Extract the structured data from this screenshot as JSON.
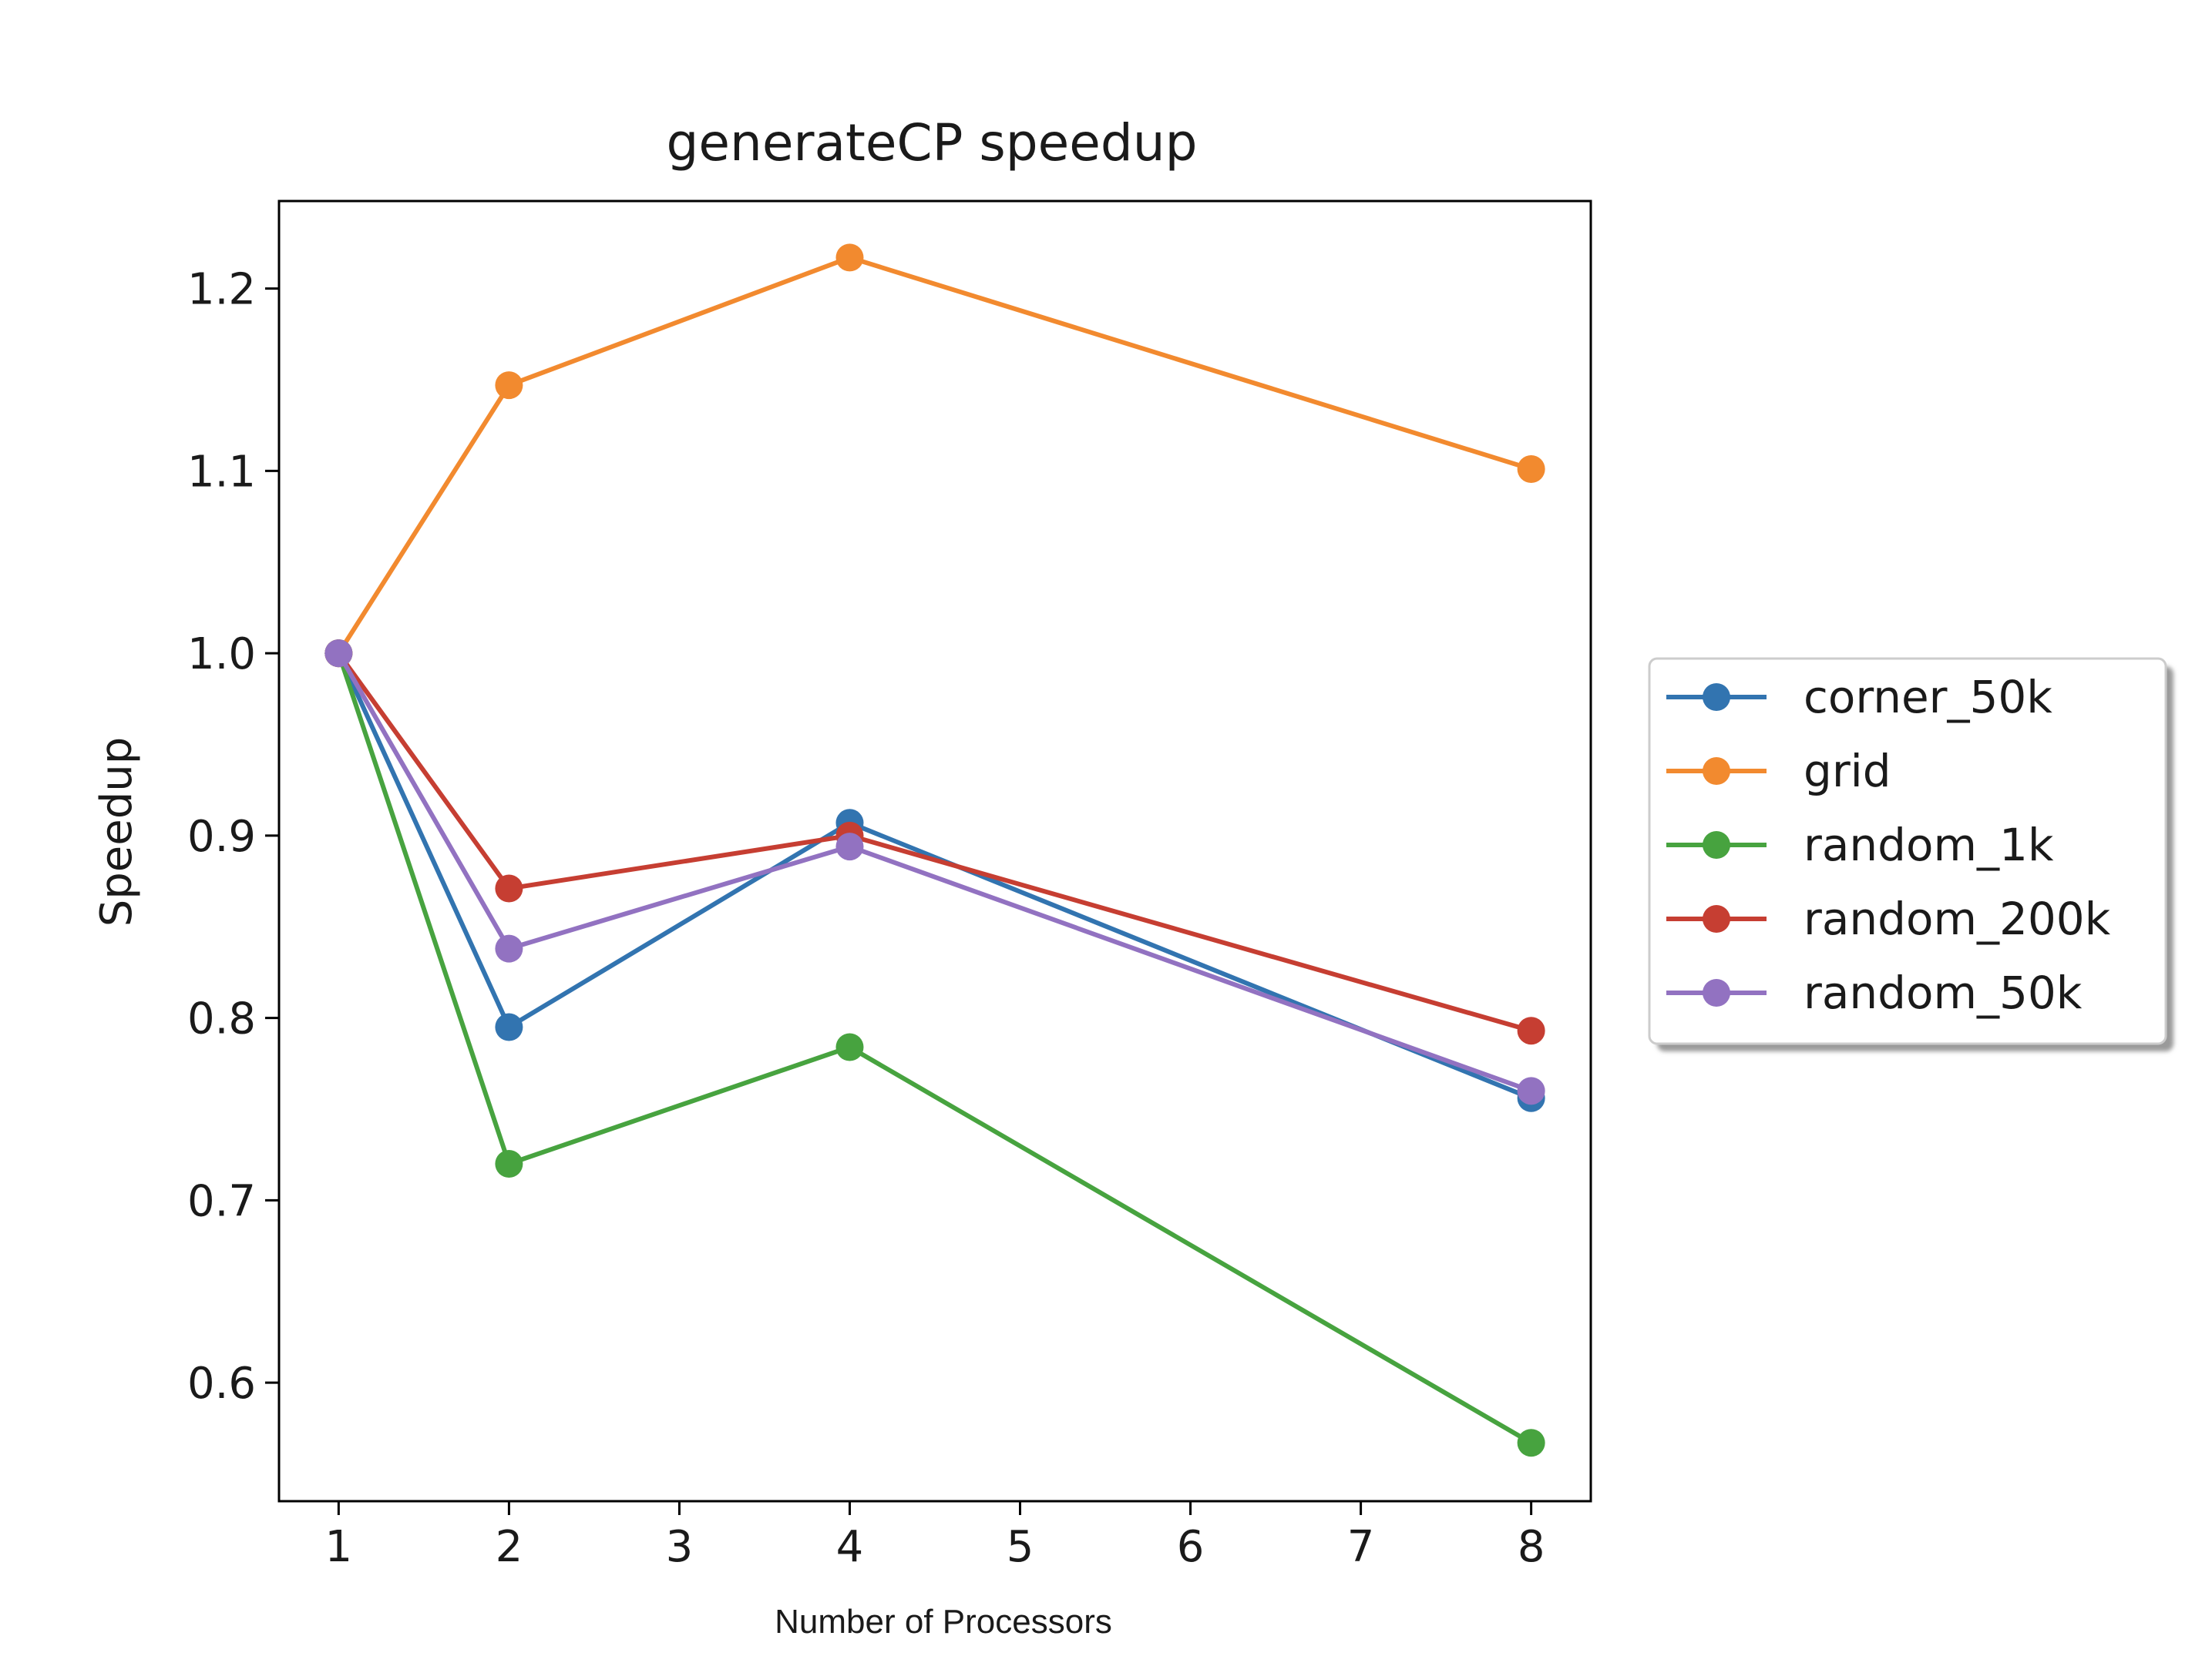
{
  "chart_data": {
    "type": "line",
    "title": "generateCP speedup",
    "xlabel": "Number of Processors",
    "ylabel": "Speedup",
    "xlim": [
      0.65,
      8.35
    ],
    "ylim": [
      0.535,
      1.248
    ],
    "xticks": [
      1,
      2,
      3,
      4,
      5,
      6,
      7,
      8
    ],
    "xtick_labels": [
      "1",
      "2",
      "3",
      "4",
      "5",
      "6",
      "7",
      "8"
    ],
    "yticks": [
      0.6,
      0.7,
      0.8,
      0.9,
      1.0,
      1.1,
      1.2
    ],
    "ytick_labels": [
      "0.6",
      "0.7",
      "0.8",
      "0.9",
      "1.0",
      "1.1",
      "1.2"
    ],
    "grid": false,
    "legend_position": "outside-right",
    "x": [
      1,
      2,
      4,
      8
    ],
    "series": [
      {
        "name": "corner_50k",
        "color": "#3274b0",
        "values": [
          1.0,
          0.795,
          0.907,
          0.756
        ]
      },
      {
        "name": "grid",
        "color": "#f28a2f",
        "values": [
          1.0,
          1.147,
          1.217,
          1.101
        ]
      },
      {
        "name": "random_1k",
        "color": "#47a33f",
        "values": [
          1.0,
          0.72,
          0.784,
          0.567
        ]
      },
      {
        "name": "random_200k",
        "color": "#c63e32",
        "values": [
          1.0,
          0.871,
          0.9,
          0.793
        ]
      },
      {
        "name": "random_50k",
        "color": "#9272c1",
        "values": [
          1.0,
          0.838,
          0.894,
          0.76
        ]
      }
    ]
  }
}
